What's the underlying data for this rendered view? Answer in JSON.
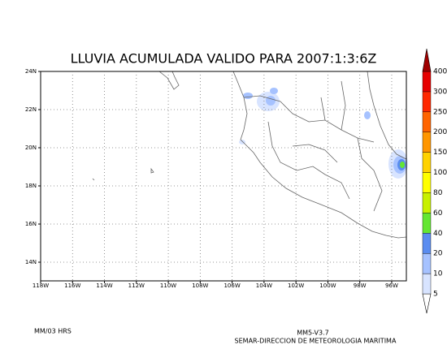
{
  "title": "LLUVIA ACUMULADA VALIDO PARA 2007:1:3:6Z",
  "lat_labels": [
    "24N",
    "22N",
    "20N",
    "18N",
    "16N",
    "14N"
  ],
  "lon_labels": [
    "118W",
    "116W",
    "114W",
    "112W",
    "110W",
    "108W",
    "106W",
    "104W",
    "102W",
    "100W",
    "98W",
    "96W"
  ],
  "colorbar": {
    "levels": [
      5,
      10,
      20,
      40,
      60,
      80,
      100,
      150,
      200,
      250,
      300,
      400
    ],
    "colors": [
      "#d8e4ff",
      "#a6c2ff",
      "#5a8cf0",
      "#64e632",
      "#c8f000",
      "#ffff00",
      "#ffd200",
      "#ff9600",
      "#ff6400",
      "#ff2800",
      "#e60000"
    ],
    "over_color": "#a00000"
  },
  "footer": {
    "left": "MM/03 HRS",
    "model": "MM5-V3.7",
    "agency": "SEMAR-DIRECCION DE METEOROLOGIA MARITIMA"
  }
}
